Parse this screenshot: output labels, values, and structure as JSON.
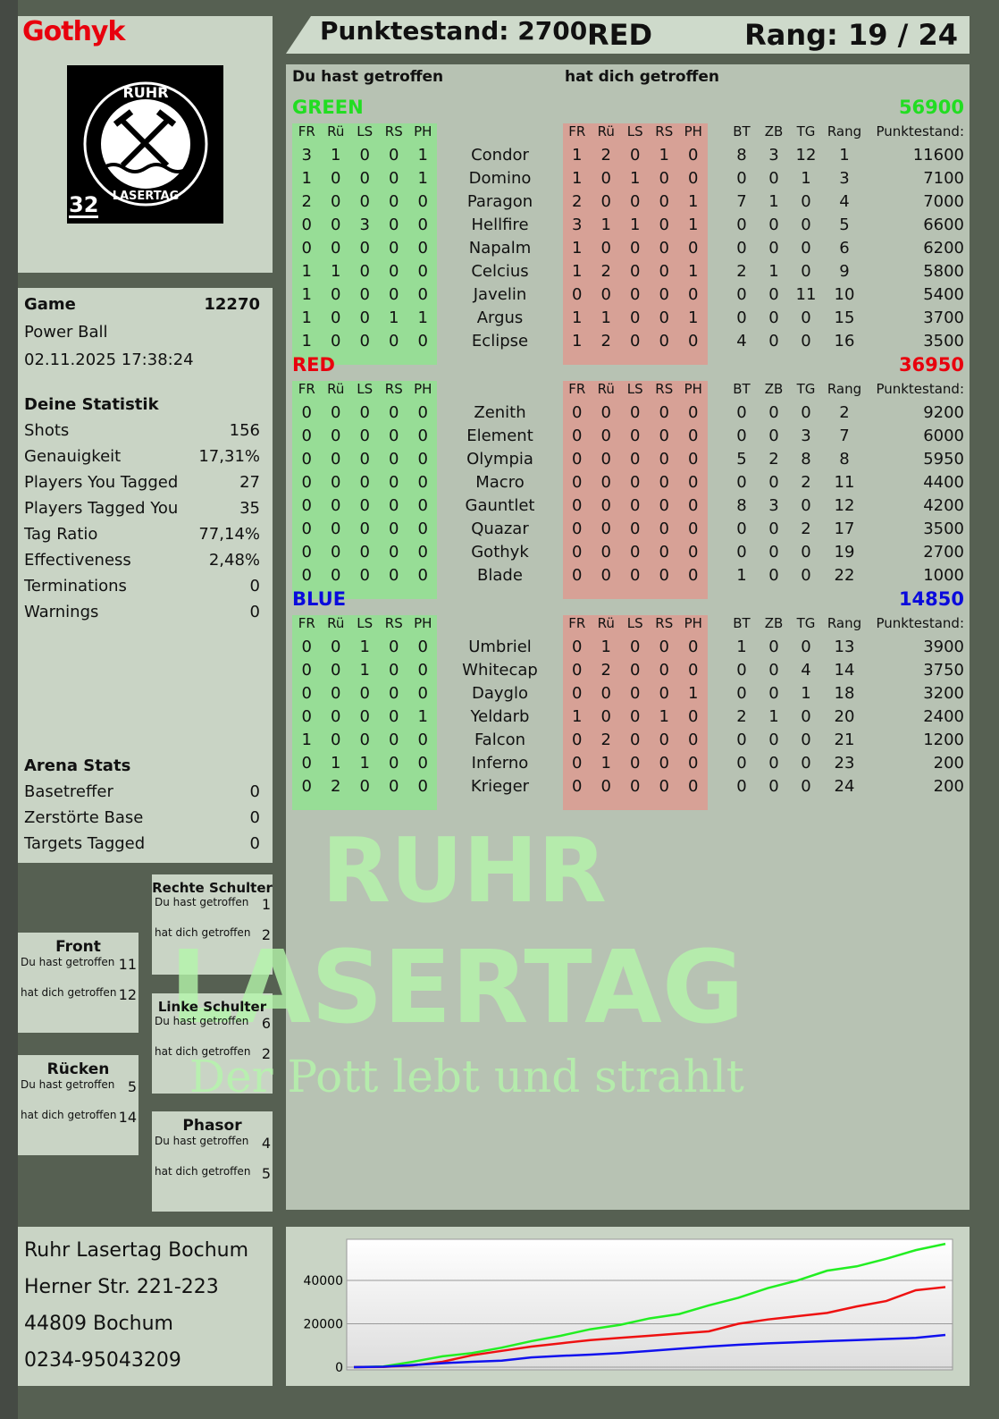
{
  "player": {
    "name": "Gothyk",
    "badge_number": "32",
    "logo_text": "RUHR LASERTAG"
  },
  "header": {
    "score_label": "Punktestand: 2700",
    "team": "RED",
    "rank": "Rang: 19 / 24"
  },
  "game": {
    "label": "Game",
    "id": "12270",
    "mode": "Power Ball",
    "datetime": "02.11.2025 17:38:24"
  },
  "stats": {
    "title": "Deine Statistik",
    "items": [
      {
        "label": "Shots",
        "value": "156"
      },
      {
        "label": "Genauigkeit",
        "value": "17,31%"
      },
      {
        "label": "Players You Tagged",
        "value": "27"
      },
      {
        "label": "Players Tagged You",
        "value": "35"
      },
      {
        "label": "Tag Ratio",
        "value": "77,14%"
      },
      {
        "label": "Effectiveness",
        "value": "2,48%"
      },
      {
        "label": "Terminations",
        "value": "0"
      },
      {
        "label": "Warnings",
        "value": "0"
      }
    ]
  },
  "arena": {
    "title": "Arena Stats",
    "items": [
      {
        "label": "Basetreffer",
        "value": "0"
      },
      {
        "label": "Zerstörte Base",
        "value": "0"
      },
      {
        "label": "Targets Tagged",
        "value": "0"
      }
    ]
  },
  "zones": {
    "you_hit": "Du hast getroffen",
    "hit_you": "hat dich getroffen",
    "front": {
      "title": "Front",
      "you": "11",
      "them": "12"
    },
    "right": {
      "title": "Rechte Schulter",
      "you": "1",
      "them": "2"
    },
    "left": {
      "title": "Linke Schulter",
      "you": "6",
      "them": "2"
    },
    "back": {
      "title": "Rücken",
      "you": "5",
      "them": "14"
    },
    "phasor": {
      "title": "Phasor",
      "you": "4",
      "them": "5"
    }
  },
  "address": {
    "name": "Ruhr Lasertag Bochum",
    "street": "Herner Str. 221-223",
    "city": "44809 Bochum",
    "phone": "0234-95043209"
  },
  "table": {
    "you_hit": "Du hast getroffen",
    "hit_you": "hat dich getroffen",
    "columns": [
      "FR",
      "Rü",
      "LS",
      "RS",
      "PH",
      "",
      "FR",
      "Rü",
      "LS",
      "RS",
      "PH",
      "",
      "BT",
      "ZB",
      "TG",
      "Rang",
      "Punktestand:"
    ],
    "teams": [
      {
        "name": "GREEN",
        "color": "#22dd22",
        "total": "56900",
        "players": [
          [
            "3",
            "1",
            "0",
            "0",
            "1",
            "Condor",
            "1",
            "2",
            "0",
            "1",
            "0",
            "8",
            "3",
            "12",
            "1",
            "11600"
          ],
          [
            "1",
            "0",
            "0",
            "0",
            "1",
            "Domino",
            "1",
            "0",
            "1",
            "0",
            "0",
            "0",
            "0",
            "1",
            "3",
            "7100"
          ],
          [
            "2",
            "0",
            "0",
            "0",
            "0",
            "Paragon",
            "2",
            "0",
            "0",
            "0",
            "1",
            "7",
            "1",
            "0",
            "4",
            "7000"
          ],
          [
            "0",
            "0",
            "3",
            "0",
            "0",
            "Hellfire",
            "3",
            "1",
            "1",
            "0",
            "1",
            "0",
            "0",
            "0",
            "5",
            "6600"
          ],
          [
            "0",
            "0",
            "0",
            "0",
            "0",
            "Napalm",
            "1",
            "0",
            "0",
            "0",
            "0",
            "0",
            "0",
            "0",
            "6",
            "6200"
          ],
          [
            "1",
            "1",
            "0",
            "0",
            "0",
            "Celcius",
            "1",
            "2",
            "0",
            "0",
            "1",
            "2",
            "1",
            "0",
            "9",
            "5800"
          ],
          [
            "1",
            "0",
            "0",
            "0",
            "0",
            "Javelin",
            "0",
            "0",
            "0",
            "0",
            "0",
            "0",
            "0",
            "11",
            "10",
            "5400"
          ],
          [
            "1",
            "0",
            "0",
            "1",
            "1",
            "Argus",
            "1",
            "1",
            "0",
            "0",
            "1",
            "0",
            "0",
            "0",
            "15",
            "3700"
          ],
          [
            "1",
            "0",
            "0",
            "0",
            "0",
            "Eclipse",
            "1",
            "2",
            "0",
            "0",
            "0",
            "4",
            "0",
            "0",
            "16",
            "3500"
          ]
        ]
      },
      {
        "name": "RED",
        "color": "#e8000d",
        "total": "36950",
        "players": [
          [
            "0",
            "0",
            "0",
            "0",
            "0",
            "Zenith",
            "0",
            "0",
            "0",
            "0",
            "0",
            "0",
            "0",
            "0",
            "2",
            "9200"
          ],
          [
            "0",
            "0",
            "0",
            "0",
            "0",
            "Element",
            "0",
            "0",
            "0",
            "0",
            "0",
            "0",
            "0",
            "3",
            "7",
            "6000"
          ],
          [
            "0",
            "0",
            "0",
            "0",
            "0",
            "Olympia",
            "0",
            "0",
            "0",
            "0",
            "0",
            "5",
            "2",
            "8",
            "8",
            "5950"
          ],
          [
            "0",
            "0",
            "0",
            "0",
            "0",
            "Macro",
            "0",
            "0",
            "0",
            "0",
            "0",
            "0",
            "0",
            "2",
            "11",
            "4400"
          ],
          [
            "0",
            "0",
            "0",
            "0",
            "0",
            "Gauntlet",
            "0",
            "0",
            "0",
            "0",
            "0",
            "8",
            "3",
            "0",
            "12",
            "4200"
          ],
          [
            "0",
            "0",
            "0",
            "0",
            "0",
            "Quazar",
            "0",
            "0",
            "0",
            "0",
            "0",
            "0",
            "0",
            "2",
            "17",
            "3500"
          ],
          [
            "0",
            "0",
            "0",
            "0",
            "0",
            "Gothyk",
            "0",
            "0",
            "0",
            "0",
            "0",
            "0",
            "0",
            "0",
            "19",
            "2700"
          ],
          [
            "0",
            "0",
            "0",
            "0",
            "0",
            "Blade",
            "0",
            "0",
            "0",
            "0",
            "0",
            "1",
            "0",
            "0",
            "22",
            "1000"
          ]
        ]
      },
      {
        "name": "BLUE",
        "color": "#0a0adc",
        "total": "14850",
        "players": [
          [
            "0",
            "0",
            "1",
            "0",
            "0",
            "Umbriel",
            "0",
            "1",
            "0",
            "0",
            "0",
            "1",
            "0",
            "0",
            "13",
            "3900"
          ],
          [
            "0",
            "0",
            "1",
            "0",
            "0",
            "Whitecap",
            "0",
            "2",
            "0",
            "0",
            "0",
            "0",
            "0",
            "4",
            "14",
            "3750"
          ],
          [
            "0",
            "0",
            "0",
            "0",
            "0",
            "Dayglo",
            "0",
            "0",
            "0",
            "0",
            "1",
            "0",
            "0",
            "1",
            "18",
            "3200"
          ],
          [
            "0",
            "0",
            "0",
            "0",
            "1",
            "Yeldarb",
            "1",
            "0",
            "0",
            "1",
            "0",
            "2",
            "1",
            "0",
            "20",
            "2400"
          ],
          [
            "1",
            "0",
            "0",
            "0",
            "0",
            "Falcon",
            "0",
            "2",
            "0",
            "0",
            "0",
            "0",
            "0",
            "0",
            "21",
            "1200"
          ],
          [
            "0",
            "1",
            "1",
            "0",
            "0",
            "Inferno",
            "0",
            "1",
            "0",
            "0",
            "0",
            "0",
            "0",
            "0",
            "23",
            "200"
          ],
          [
            "0",
            "2",
            "0",
            "0",
            "0",
            "Krieger",
            "0",
            "0",
            "0",
            "0",
            "0",
            "0",
            "0",
            "0",
            "24",
            "200"
          ]
        ]
      }
    ]
  },
  "watermark": {
    "line1": "RUHR",
    "line2": "LASERTAG",
    "slogan": "Der Pott lebt und strahlt"
  },
  "chart_data": {
    "type": "line",
    "ylim": [
      0,
      59000
    ],
    "yticks": [
      "0",
      "20000",
      "40000"
    ],
    "grid": true,
    "x": [
      0,
      1,
      2,
      3,
      4,
      5,
      6,
      7,
      8,
      9,
      10,
      11,
      12,
      13,
      14,
      15,
      16,
      17,
      18,
      19,
      20
    ],
    "series": [
      {
        "color": "#22ee22",
        "values": [
          0,
          300,
          2500,
          5000,
          6500,
          9000,
          12000,
          14500,
          17500,
          19500,
          22500,
          24500,
          28500,
          32000,
          36500,
          40000,
          44500,
          46500,
          50000,
          54000,
          56900
        ]
      },
      {
        "color": "#ee1111",
        "values": [
          0,
          100,
          800,
          2500,
          5500,
          7500,
          9500,
          11000,
          12500,
          13500,
          14500,
          15500,
          16500,
          20000,
          22000,
          23500,
          25000,
          28000,
          30500,
          35500,
          36950
        ]
      },
      {
        "color": "#1111ee",
        "values": [
          0,
          200,
          1000,
          1800,
          2500,
          3000,
          4500,
          5200,
          5800,
          6500,
          7500,
          8500,
          9500,
          10300,
          11000,
          11500,
          12000,
          12500,
          13000,
          13500,
          14850
        ]
      }
    ]
  }
}
